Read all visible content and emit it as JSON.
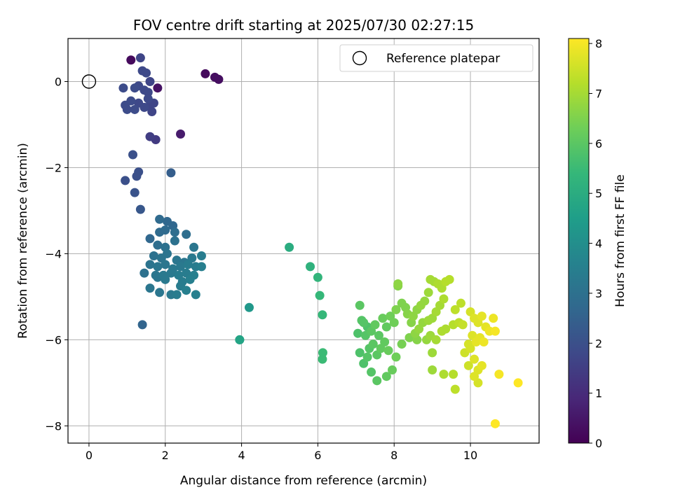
{
  "chart_data": {
    "type": "scatter",
    "title": "FOV centre drift starting at 2025/07/30 02:27:15",
    "xlabel": "Angular distance from reference (arcmin)",
    "ylabel": "Rotation from reference (arcmin)",
    "xlim": [
      -0.55,
      11.8
    ],
    "ylim": [
      -8.4,
      1.0
    ],
    "xticks": [
      0,
      2,
      4,
      6,
      8,
      10
    ],
    "yticks": [
      0,
      -2,
      -4,
      -6,
      -8
    ],
    "grid": true,
    "legend": {
      "placement": "top-right",
      "entries": [
        "Reference platepar"
      ]
    },
    "reference_point": {
      "x": 0,
      "y": 0
    },
    "colorbar": {
      "label": "Hours from first FF file",
      "range": [
        0,
        8.1
      ],
      "ticks": [
        0,
        1,
        2,
        3,
        4,
        5,
        6,
        7,
        8
      ],
      "colormap": [
        "#440154",
        "#482878",
        "#3e4989",
        "#31688e",
        "#26828e",
        "#1f9e89",
        "#35b779",
        "#6ece58",
        "#b5de2b",
        "#fde725"
      ]
    },
    "series": [
      {
        "points": [
          [
            1.1,
            0.5,
            0.2
          ],
          [
            1.35,
            0.55,
            1.7
          ],
          [
            1.4,
            0.25,
            1.8
          ],
          [
            1.5,
            0.2,
            1.8
          ],
          [
            3.05,
            0.18,
            0.2
          ],
          [
            3.3,
            0.1,
            0.3
          ],
          [
            3.4,
            0.05,
            0.3
          ],
          [
            0.9,
            -0.15,
            1.9
          ],
          [
            1.2,
            -0.15,
            1.9
          ],
          [
            1.3,
            -0.1,
            1.8
          ],
          [
            1.45,
            -0.2,
            1.8
          ],
          [
            1.55,
            -0.25,
            1.8
          ],
          [
            1.6,
            0.0,
            1.7
          ],
          [
            1.8,
            -0.15,
            0.4
          ],
          [
            0.95,
            -0.55,
            1.9
          ],
          [
            1.1,
            -0.45,
            1.9
          ],
          [
            1.0,
            -0.65,
            1.9
          ],
          [
            1.2,
            -0.65,
            1.9
          ],
          [
            1.3,
            -0.5,
            1.8
          ],
          [
            1.45,
            -0.6,
            1.8
          ],
          [
            1.55,
            -0.4,
            1.8
          ],
          [
            1.6,
            -0.55,
            1.7
          ],
          [
            1.65,
            -0.7,
            1.7
          ],
          [
            1.7,
            -0.5,
            1.7
          ],
          [
            1.6,
            -1.28,
            1.5
          ],
          [
            1.75,
            -1.35,
            1.4
          ],
          [
            2.4,
            -1.22,
            0.6
          ],
          [
            1.15,
            -1.7,
            2.0
          ],
          [
            1.3,
            -2.1,
            2.0
          ],
          [
            1.25,
            -2.2,
            2.0
          ],
          [
            0.95,
            -2.3,
            2.0
          ],
          [
            2.15,
            -2.12,
            2.4
          ],
          [
            1.2,
            -2.58,
            2.1
          ],
          [
            1.35,
            -2.97,
            2.2
          ],
          [
            1.85,
            -3.2,
            2.8
          ],
          [
            2.05,
            -3.25,
            2.7
          ],
          [
            2.2,
            -3.35,
            2.7
          ],
          [
            1.6,
            -3.65,
            2.7
          ],
          [
            1.85,
            -3.5,
            2.8
          ],
          [
            2.0,
            -3.45,
            2.8
          ],
          [
            2.25,
            -3.5,
            2.9
          ],
          [
            2.55,
            -3.55,
            2.9
          ],
          [
            1.8,
            -3.8,
            2.9
          ],
          [
            2.0,
            -3.85,
            3.0
          ],
          [
            2.25,
            -3.7,
            3.0
          ],
          [
            1.7,
            -4.05,
            3.0
          ],
          [
            1.9,
            -4.1,
            3.1
          ],
          [
            2.05,
            -4.0,
            3.1
          ],
          [
            2.3,
            -4.15,
            3.2
          ],
          [
            2.5,
            -4.2,
            3.2
          ],
          [
            2.7,
            -4.1,
            3.3
          ],
          [
            2.75,
            -3.85,
            3.2
          ],
          [
            2.95,
            -4.05,
            3.4
          ],
          [
            1.6,
            -4.25,
            3.1
          ],
          [
            1.8,
            -4.3,
            3.2
          ],
          [
            2.0,
            -4.25,
            3.2
          ],
          [
            2.2,
            -4.35,
            3.3
          ],
          [
            2.4,
            -4.3,
            3.3
          ],
          [
            2.6,
            -4.25,
            3.4
          ],
          [
            2.8,
            -4.3,
            3.4
          ],
          [
            2.95,
            -4.3,
            3.5
          ],
          [
            1.45,
            -4.45,
            3.0
          ],
          [
            1.75,
            -4.5,
            3.2
          ],
          [
            1.95,
            -4.5,
            3.3
          ],
          [
            2.15,
            -4.45,
            3.3
          ],
          [
            2.35,
            -4.5,
            3.4
          ],
          [
            2.55,
            -4.45,
            3.4
          ],
          [
            2.75,
            -4.5,
            3.5
          ],
          [
            1.8,
            -4.55,
            3.2
          ],
          [
            2.0,
            -4.6,
            3.3
          ],
          [
            2.45,
            -4.65,
            3.4
          ],
          [
            2.65,
            -4.6,
            3.5
          ],
          [
            1.6,
            -4.8,
            3.2
          ],
          [
            1.85,
            -4.9,
            3.2
          ],
          [
            2.4,
            -4.75,
            3.4
          ],
          [
            2.55,
            -4.85,
            3.5
          ],
          [
            2.15,
            -4.95,
            3.3
          ],
          [
            2.3,
            -4.95,
            3.4
          ],
          [
            2.8,
            -4.95,
            3.5
          ],
          [
            1.4,
            -5.65,
            2.6
          ],
          [
            4.2,
            -5.25,
            4.3
          ],
          [
            3.95,
            -6.0,
            4.7
          ],
          [
            3.95,
            -6.0,
            4.6
          ],
          [
            5.25,
            -3.85,
            5.0
          ],
          [
            5.8,
            -4.3,
            5.2
          ],
          [
            6.0,
            -4.55,
            5.3
          ],
          [
            6.05,
            -4.97,
            5.4
          ],
          [
            6.12,
            -5.42,
            5.4
          ],
          [
            6.13,
            -6.3,
            5.5
          ],
          [
            6.12,
            -6.45,
            5.5
          ],
          [
            7.1,
            -5.2,
            6.0
          ],
          [
            7.15,
            -5.55,
            5.9
          ],
          [
            7.2,
            -5.6,
            5.9
          ],
          [
            7.3,
            -5.7,
            5.8
          ],
          [
            7.05,
            -5.85,
            5.8
          ],
          [
            7.25,
            -5.9,
            5.9
          ],
          [
            7.4,
            -5.8,
            6.0
          ],
          [
            7.5,
            -5.65,
            6.1
          ],
          [
            7.6,
            -5.9,
            6.0
          ],
          [
            7.7,
            -5.5,
            6.2
          ],
          [
            7.8,
            -5.7,
            6.1
          ],
          [
            7.9,
            -5.45,
            6.3
          ],
          [
            8.0,
            -5.6,
            6.3
          ],
          [
            8.05,
            -5.3,
            6.5
          ],
          [
            8.1,
            -4.7,
            6.7
          ],
          [
            8.1,
            -4.75,
            6.6
          ],
          [
            8.2,
            -5.15,
            6.5
          ],
          [
            8.3,
            -5.25,
            6.5
          ],
          [
            8.35,
            -5.4,
            6.6
          ],
          [
            8.45,
            -5.6,
            6.6
          ],
          [
            8.5,
            -5.45,
            6.7
          ],
          [
            8.6,
            -5.3,
            6.7
          ],
          [
            8.7,
            -5.2,
            6.8
          ],
          [
            8.8,
            -5.1,
            6.8
          ],
          [
            8.9,
            -4.9,
            6.9
          ],
          [
            8.95,
            -4.6,
            7.0
          ],
          [
            9.05,
            -4.65,
            7.0
          ],
          [
            9.15,
            -4.7,
            7.1
          ],
          [
            9.25,
            -4.8,
            7.1
          ],
          [
            9.35,
            -4.65,
            7.2
          ],
          [
            9.45,
            -4.6,
            7.2
          ],
          [
            9.3,
            -5.05,
            7.1
          ],
          [
            9.2,
            -5.2,
            7.0
          ],
          [
            9.1,
            -5.35,
            7.0
          ],
          [
            9.0,
            -5.5,
            6.9
          ],
          [
            8.9,
            -5.55,
            6.9
          ],
          [
            8.75,
            -5.6,
            6.8
          ],
          [
            8.65,
            -5.75,
            6.8
          ],
          [
            8.55,
            -5.85,
            6.7
          ],
          [
            7.1,
            -6.3,
            5.8
          ],
          [
            7.2,
            -6.55,
            5.8
          ],
          [
            7.3,
            -6.4,
            5.9
          ],
          [
            7.35,
            -6.2,
            5.9
          ],
          [
            7.45,
            -6.1,
            6.0
          ],
          [
            7.55,
            -6.35,
            6.0
          ],
          [
            7.65,
            -6.2,
            6.1
          ],
          [
            7.75,
            -6.05,
            6.1
          ],
          [
            7.85,
            -6.25,
            6.2
          ],
          [
            7.4,
            -6.75,
            5.9
          ],
          [
            7.55,
            -6.95,
            6.0
          ],
          [
            7.8,
            -6.85,
            6.1
          ],
          [
            7.95,
            -6.7,
            6.2
          ],
          [
            8.05,
            -6.4,
            6.3
          ],
          [
            8.2,
            -6.1,
            6.4
          ],
          [
            8.4,
            -5.95,
            6.5
          ],
          [
            8.6,
            -6.0,
            6.6
          ],
          [
            8.85,
            -6.0,
            6.8
          ],
          [
            8.95,
            -5.9,
            6.9
          ],
          [
            9.1,
            -6.0,
            7.0
          ],
          [
            9.25,
            -5.8,
            7.1
          ],
          [
            9.35,
            -5.75,
            7.1
          ],
          [
            9.55,
            -5.65,
            7.2
          ],
          [
            9.7,
            -5.6,
            7.3
          ],
          [
            9.6,
            -5.3,
            7.3
          ],
          [
            9.75,
            -5.15,
            7.3
          ],
          [
            9.8,
            -5.65,
            7.4
          ],
          [
            9.85,
            -6.3,
            7.5
          ],
          [
            9.0,
            -6.3,
            6.9
          ],
          [
            9.0,
            -6.7,
            6.9
          ],
          [
            9.3,
            -6.8,
            7.1
          ],
          [
            9.55,
            -6.8,
            7.2
          ],
          [
            9.6,
            -7.15,
            7.3
          ],
          [
            10.0,
            -5.35,
            7.6
          ],
          [
            10.1,
            -5.5,
            7.7
          ],
          [
            10.2,
            -5.6,
            7.7
          ],
          [
            10.3,
            -5.45,
            7.8
          ],
          [
            10.4,
            -5.7,
            7.8
          ],
          [
            10.5,
            -5.8,
            7.9
          ],
          [
            10.6,
            -5.5,
            7.9
          ],
          [
            10.65,
            -5.8,
            8.0
          ],
          [
            10.05,
            -5.9,
            7.7
          ],
          [
            10.15,
            -6.05,
            7.8
          ],
          [
            10.25,
            -5.95,
            7.8
          ],
          [
            10.35,
            -6.05,
            7.9
          ],
          [
            10.0,
            -6.2,
            7.6
          ],
          [
            10.1,
            -6.45,
            7.7
          ],
          [
            10.2,
            -6.7,
            7.7
          ],
          [
            10.1,
            -6.85,
            7.7
          ],
          [
            10.2,
            -7.0,
            7.6
          ],
          [
            10.75,
            -6.8,
            8.0
          ],
          [
            11.25,
            -7.0,
            8.1
          ],
          [
            10.65,
            -7.95,
            8.1
          ],
          [
            9.95,
            -6.6,
            7.5
          ],
          [
            9.95,
            -6.1,
            7.6
          ],
          [
            10.3,
            -6.6,
            7.8
          ]
        ]
      }
    ]
  }
}
